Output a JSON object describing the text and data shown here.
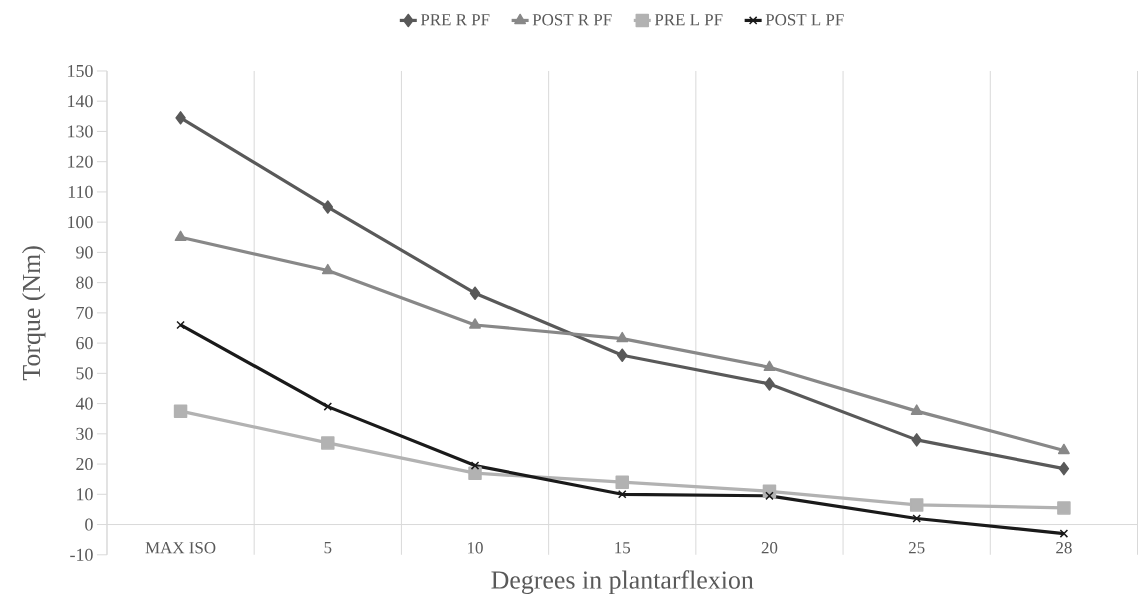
{
  "chart_data": {
    "type": "line",
    "xlabel": "Degrees in plantarflexion",
    "ylabel": "Torque (Nm)",
    "categories": [
      "MAX ISO",
      "5",
      "10",
      "15",
      "20",
      "25",
      "28"
    ],
    "series": [
      {
        "name": "PRE R PF",
        "color": "#595959",
        "marker": "diamond",
        "values": [
          134.5,
          105,
          76.5,
          56,
          46.5,
          28,
          18.5
        ]
      },
      {
        "name": "POST R PF",
        "color": "#888888",
        "marker": "triangle",
        "values": [
          95,
          84,
          66,
          61.5,
          52,
          37.5,
          24.5
        ]
      },
      {
        "name": "PRE L PF",
        "color": "#b2b2b2",
        "marker": "square",
        "values": [
          37.5,
          27,
          17,
          14,
          11,
          6.5,
          5.5
        ]
      },
      {
        "name": "POST L PF",
        "color": "#1a1a1a",
        "marker": "cross",
        "values": [
          66,
          39,
          19.5,
          10,
          9.5,
          2,
          -3
        ]
      }
    ],
    "ylim": [
      -10,
      150
    ],
    "yticks": [
      -10,
      0,
      10,
      20,
      30,
      40,
      50,
      60,
      70,
      80,
      90,
      100,
      110,
      120,
      130,
      140,
      150
    ],
    "grid": "x",
    "legend": "top",
    "line_style": "solid"
  }
}
